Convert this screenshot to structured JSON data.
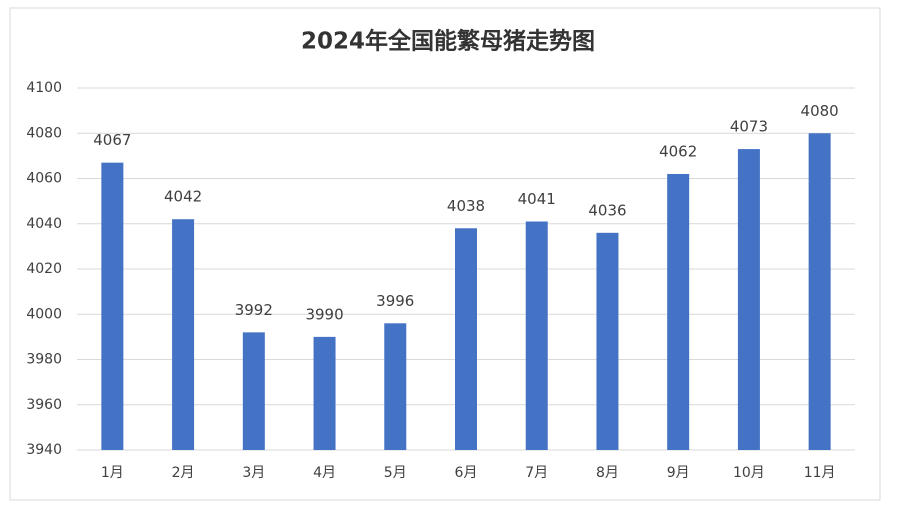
{
  "chart_data": {
    "type": "bar",
    "title": "2024年全国能繁母猪走势图",
    "categories": [
      "1月",
      "2月",
      "3月",
      "4月",
      "5月",
      "6月",
      "7月",
      "8月",
      "9月",
      "10月",
      "11月"
    ],
    "values": [
      4067,
      4042,
      3992,
      3990,
      3996,
      4038,
      4041,
      4036,
      4062,
      4073,
      4080
    ],
    "color": "#4472c4",
    "ylim": [
      3940,
      4100
    ],
    "yticks": [
      3940,
      3960,
      3980,
      4000,
      4020,
      4040,
      4060,
      4080,
      4100
    ],
    "grid": true
  }
}
